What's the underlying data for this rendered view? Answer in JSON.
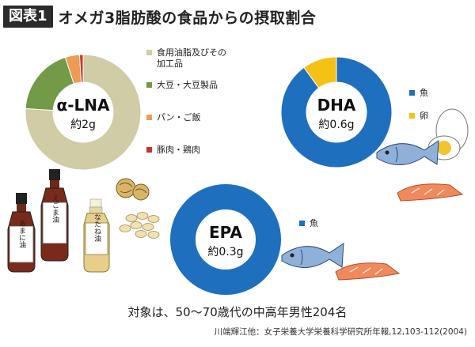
{
  "header": {
    "figure_label": "図表1",
    "title": "オメガ3脂肪酸の食品からの摂取割合"
  },
  "chart_data": [
    {
      "type": "pie",
      "center_label": "α-LNA",
      "center_value": "約2g",
      "slices": [
        {
          "name": "食用油脂及びその加工品",
          "legend_lines": [
            "食用油脂及びその",
            "加工品"
          ],
          "value": 76,
          "color": "#cfcca6"
        },
        {
          "name": "大豆・大豆製品",
          "legend_lines": [
            "大豆・大豆製品"
          ],
          "value": 19,
          "color": "#739a47"
        },
        {
          "name": "パン・ご飯",
          "legend_lines": [
            "パン・ご飯"
          ],
          "value": 4,
          "color": "#ef9a55"
        },
        {
          "name": "豚肉・鶏肉",
          "legend_lines": [
            "豚肉・鶏肉"
          ],
          "value": 1,
          "color": "#c0392b"
        }
      ]
    },
    {
      "type": "pie",
      "center_label": "DHA",
      "center_value": "約0.6g",
      "slices": [
        {
          "name": "魚",
          "legend_lines": [
            "魚"
          ],
          "value": 90,
          "color": "#1f6fbf"
        },
        {
          "name": "卵",
          "legend_lines": [
            "卵"
          ],
          "value": 10,
          "color": "#f5c114"
        }
      ]
    },
    {
      "type": "pie",
      "center_label": "EPA",
      "center_value": "約0.3g",
      "slices": [
        {
          "name": "魚",
          "legend_lines": [
            "魚"
          ],
          "value": 100,
          "color": "#1f6fbf"
        }
      ]
    }
  ],
  "illustrations": {
    "bottle_left_label": "あまに油",
    "bottle_mid_label": "えごま油",
    "bottle_right_label": "なたね油"
  },
  "footer": {
    "note": "対象は、50〜70歳代の中高年男性204名",
    "source": "川端輝江他：女子栄養大学栄養科学研究所年報,12,103-112(2004)"
  }
}
